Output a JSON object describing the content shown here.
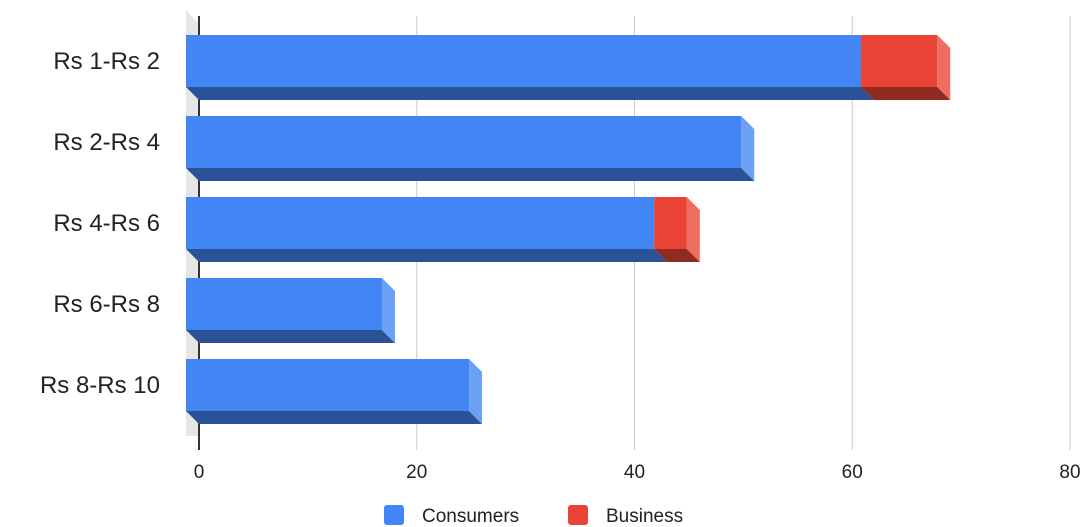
{
  "chart_data": {
    "type": "bar",
    "orientation": "horizontal",
    "stacked": true,
    "three_d": true,
    "categories": [
      "Rs 1-Rs 2",
      "Rs 2-Rs 4",
      "Rs 4-Rs 6",
      "Rs 6-Rs 8",
      "Rs 8-Rs 10"
    ],
    "series": [
      {
        "name": "Consumers",
        "values": [
          62,
          51,
          43,
          18,
          26
        ],
        "color": "#4285f4"
      },
      {
        "name": "Business",
        "values": [
          7,
          0,
          3,
          0,
          0
        ],
        "color": "#ea4335"
      }
    ],
    "x_ticks": [
      "0",
      "20",
      "40",
      "60",
      "80"
    ],
    "xlim": [
      0,
      80
    ],
    "grid": true,
    "legend_position": "bottom"
  }
}
